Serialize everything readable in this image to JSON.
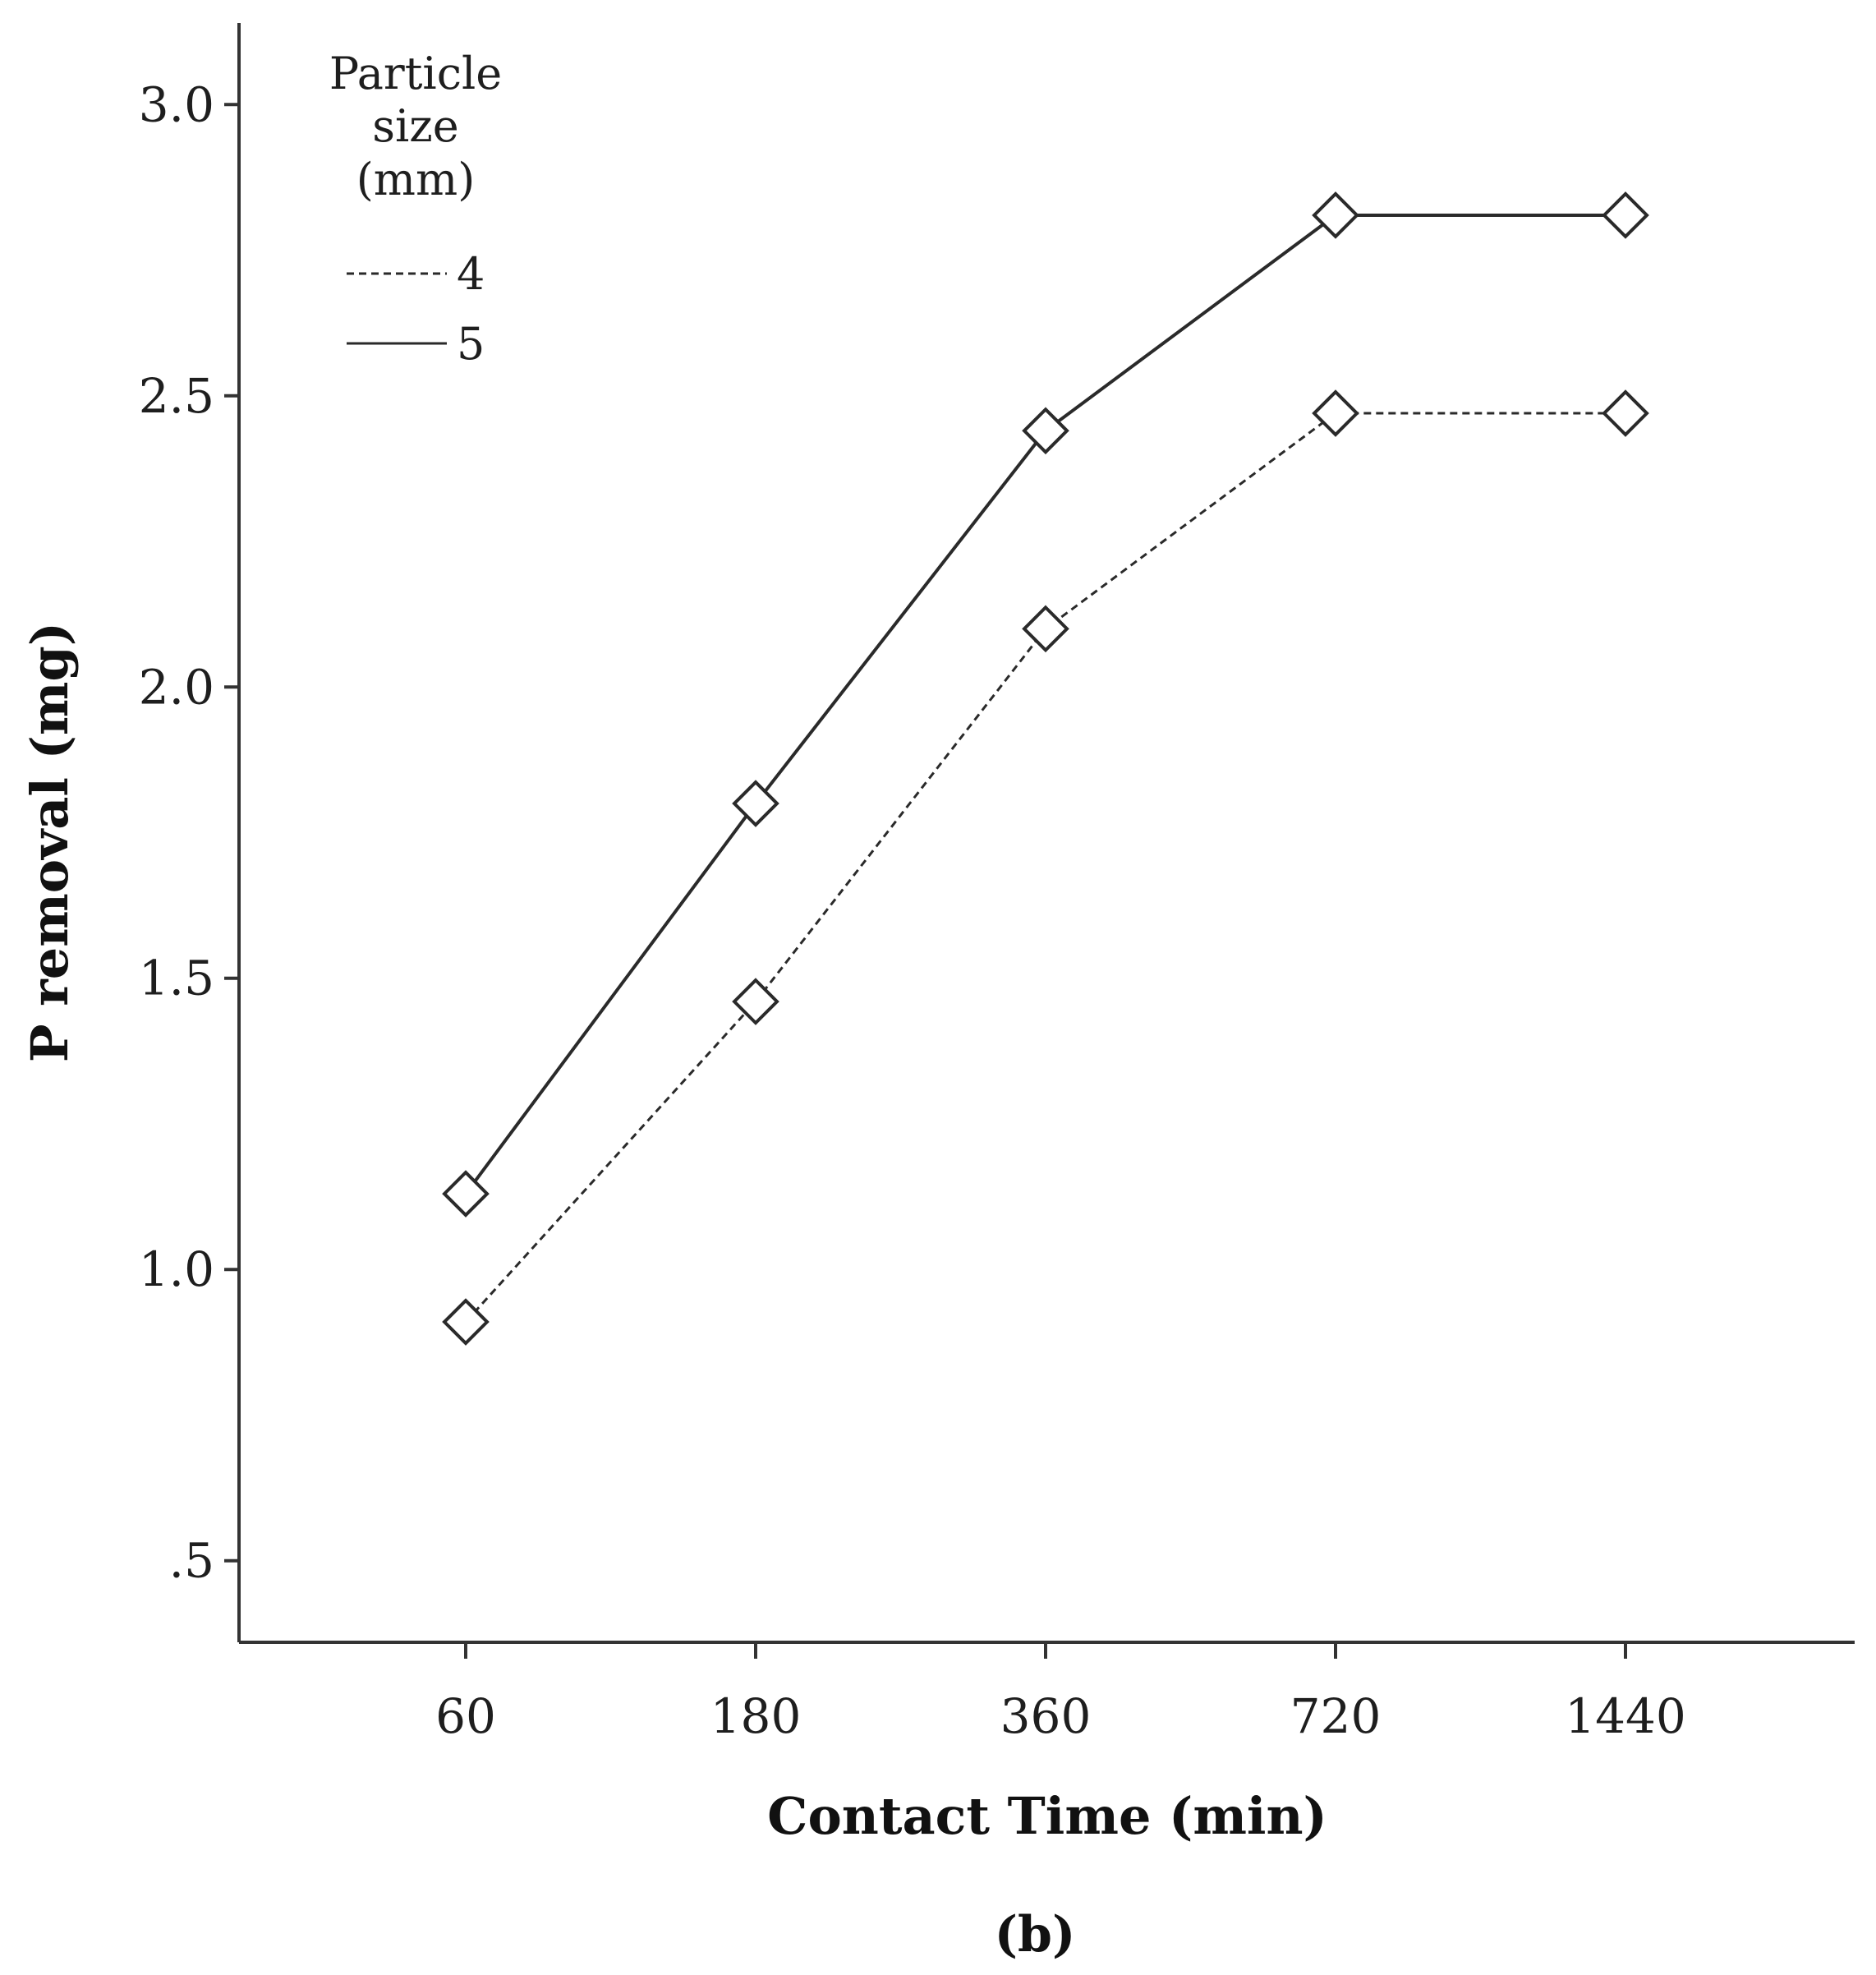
{
  "chart_data": {
    "type": "line",
    "title": "",
    "xlabel": "Contact Time (min)",
    "ylabel": "P removal (mg)",
    "panel_label": "(b)",
    "categories": [
      "60",
      "180",
      "360",
      "720",
      "1440"
    ],
    "y_ticks": [
      ".5",
      "1.0",
      "1.5",
      "2.0",
      "2.5",
      "3.0"
    ],
    "y_tick_values": [
      0.5,
      1.0,
      1.5,
      2.0,
      2.5,
      3.0
    ],
    "ylim": [
      0.36,
      3.14
    ],
    "grid": false,
    "marker": "diamond",
    "legend": {
      "title_lines": [
        "Particle",
        "size",
        "(mm)"
      ],
      "placement": "top-left"
    },
    "series": [
      {
        "name": "4",
        "line_style": "dashed",
        "values": [
          0.91,
          1.46,
          2.1,
          2.47,
          2.47
        ]
      },
      {
        "name": "5",
        "line_style": "solid",
        "values": [
          1.13,
          1.8,
          2.44,
          2.81,
          2.81
        ]
      }
    ],
    "colors": {
      "line": "#2a2a2a",
      "axis": "#333333",
      "text": "#1e1e1e"
    }
  }
}
